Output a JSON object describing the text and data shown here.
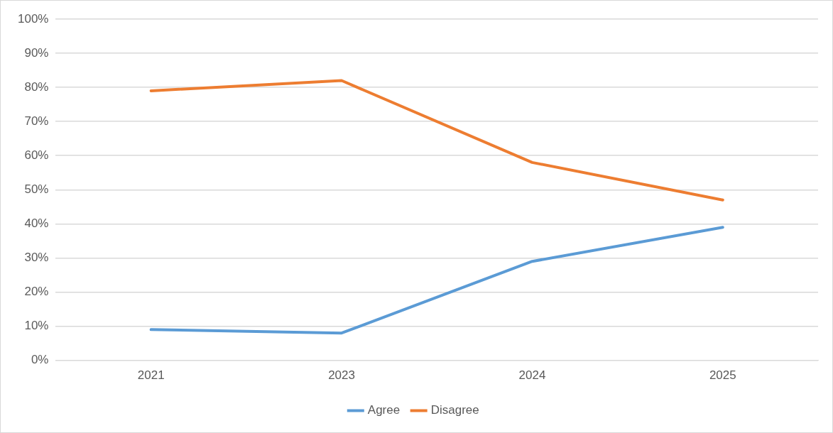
{
  "chart_data": {
    "type": "line",
    "categories": [
      "2021",
      "2023",
      "2024",
      "2025"
    ],
    "series": [
      {
        "name": "Agree",
        "color": "#5b9bd5",
        "values": [
          9,
          8,
          29,
          39
        ]
      },
      {
        "name": "Disagree",
        "color": "#ed7d31",
        "values": [
          79,
          82,
          58,
          47
        ]
      }
    ],
    "ylim": [
      0,
      100
    ],
    "yticks": [
      {
        "value": 0,
        "label": "0%"
      },
      {
        "value": 10,
        "label": "10%"
      },
      {
        "value": 20,
        "label": "20%"
      },
      {
        "value": 30,
        "label": "30%"
      },
      {
        "value": 40,
        "label": "40%"
      },
      {
        "value": 50,
        "label": "50%"
      },
      {
        "value": 60,
        "label": "60%"
      },
      {
        "value": 70,
        "label": "70%"
      },
      {
        "value": 80,
        "label": "80%"
      },
      {
        "value": 90,
        "label": "90%"
      },
      {
        "value": 100,
        "label": "100%"
      }
    ],
    "grid": "y",
    "legend": "bottom",
    "marker": "none",
    "line_style": "solid"
  }
}
